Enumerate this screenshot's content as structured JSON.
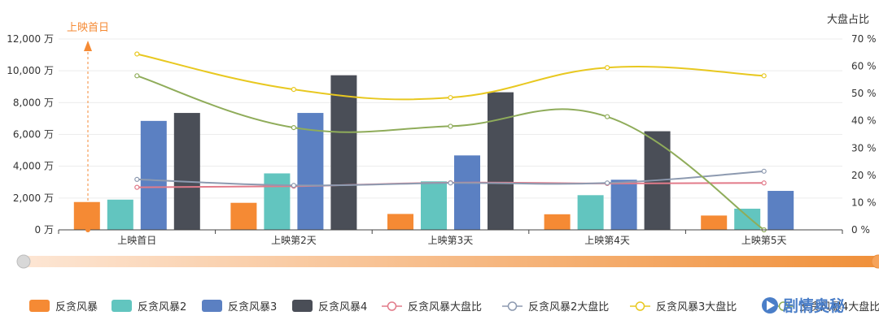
{
  "chart_data": {
    "type": "bar",
    "categories": [
      "上映首日",
      "上映第2天",
      "上映第3天",
      "上映第4天",
      "上映第5天"
    ],
    "left_axis": {
      "ticks": [
        "0 万",
        "2,000 万",
        "4,000 万",
        "6,000 万",
        "8,000 万",
        "10,000 万",
        "12,000 万"
      ],
      "ylim": [
        0,
        12000
      ]
    },
    "right_axis": {
      "name": "大盘占比",
      "ticks": [
        "0 %",
        "10 %",
        "20 %",
        "30 %",
        "40 %",
        "50 %",
        "60 %",
        "70 %"
      ],
      "ylim": [
        0,
        70
      ]
    },
    "bar_series": [
      {
        "name": "反贪风暴",
        "color": "#f58a34",
        "values": [
          1750,
          1700,
          1000,
          980,
          900
        ]
      },
      {
        "name": "反贪风暴2",
        "color": "#62c5bf",
        "values": [
          1900,
          3550,
          3050,
          2180,
          1330
        ]
      },
      {
        "name": "反贪风暴3",
        "color": "#5b80c2",
        "values": [
          6850,
          7350,
          4680,
          3150,
          2450
        ]
      },
      {
        "name": "反贪风暴4",
        "color": "#4a4e57",
        "values": [
          7350,
          9720,
          8650,
          6200,
          null
        ]
      }
    ],
    "line_series": [
      {
        "name": "反贪风暴大盘比",
        "color": "#e27b8a",
        "values": [
          15.6,
          16.0,
          17.3,
          17.0,
          17.2
        ]
      },
      {
        "name": "反贪风暴2大盘比",
        "color": "#8d9ab0",
        "values": [
          18.5,
          16.3,
          17.2,
          17.2,
          21.5
        ]
      },
      {
        "name": "反贪风暴3大盘比",
        "color": "#e8c820",
        "values": [
          64.5,
          51.5,
          48.5,
          59.5,
          56.5
        ]
      },
      {
        "name": "反贪风暴4大盘比",
        "color": "#8fac5a",
        "values": [
          56.5,
          37.5,
          38.0,
          41.5,
          0
        ]
      }
    ],
    "annotation": {
      "text": "上映首日",
      "color": "#f58a34"
    },
    "grid": true,
    "legend_position": "bottom",
    "datazoom_slider": true,
    "watermark": "剧情奥秘"
  }
}
